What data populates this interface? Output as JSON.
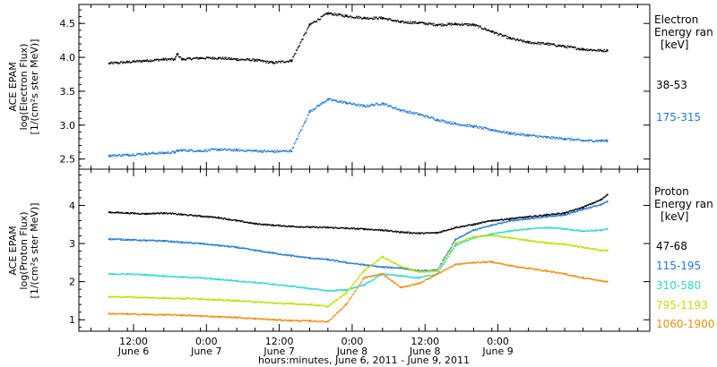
{
  "chart_data": [
    {
      "type": "scatter",
      "ylabel_lines": [
        "ACE EPAM",
        "log(Electron Flux)",
        "[1/(cm²s ster MeV)]"
      ],
      "ylim": [
        2.35,
        4.78
      ],
      "yticks": [
        "2.5",
        "3.0",
        "3.5",
        "4.0",
        "4.5"
      ],
      "ytick_values": [
        2.5,
        3.0,
        3.5,
        4.0,
        4.5
      ],
      "legend_title": [
        "Electron",
        "Energy ran",
        "[keV]"
      ],
      "x": [
        0,
        3,
        6,
        9,
        10.8,
        11.2,
        12,
        15,
        18,
        21,
        24,
        27,
        30,
        33,
        36,
        39,
        42,
        45,
        48,
        51,
        54,
        57,
        60,
        63,
        66,
        69,
        72,
        75,
        78,
        81,
        82
      ],
      "series": [
        {
          "name": "38-53",
          "color": "#000000",
          "values": [
            3.91,
            3.93,
            3.95,
            3.97,
            3.97,
            4.05,
            3.97,
            3.99,
            3.99,
            3.97,
            3.96,
            3.92,
            3.95,
            4.48,
            4.65,
            4.61,
            4.58,
            4.58,
            4.52,
            4.51,
            4.48,
            4.49,
            4.48,
            4.38,
            4.28,
            4.22,
            4.2,
            4.16,
            4.12,
            4.1,
            4.1
          ]
        },
        {
          "name": "175-315",
          "color": "#1f78d8",
          "values": [
            2.55,
            2.56,
            2.58,
            2.59,
            2.6,
            2.62,
            2.63,
            2.62,
            2.64,
            2.63,
            2.62,
            2.61,
            2.62,
            3.2,
            3.38,
            3.33,
            3.28,
            3.32,
            3.22,
            3.16,
            3.08,
            3.02,
            2.98,
            2.93,
            2.88,
            2.85,
            2.82,
            2.8,
            2.77,
            2.77,
            2.77
          ]
        }
      ]
    },
    {
      "type": "scatter",
      "ylabel_lines": [
        "ACE EPAM",
        "log(Proton Flux)",
        "[1/(cm²s ster MeV)]"
      ],
      "ylim": [
        0.7,
        4.95
      ],
      "yticks": [
        "1",
        "2",
        "3",
        "4"
      ],
      "ytick_values": [
        1,
        2,
        3,
        4
      ],
      "legend_title": [
        "Proton",
        "Energy ran",
        "[keV]"
      ],
      "x": [
        0,
        3,
        6,
        9,
        12,
        15,
        18,
        21,
        24,
        27,
        30,
        33,
        36,
        39,
        42,
        45,
        48,
        51,
        54,
        57,
        60,
        63,
        66,
        69,
        72,
        75,
        78,
        81,
        82
      ],
      "series": [
        {
          "name": "47-68",
          "color": "#000000",
          "values": [
            3.82,
            3.8,
            3.78,
            3.8,
            3.76,
            3.72,
            3.68,
            3.6,
            3.52,
            3.48,
            3.45,
            3.43,
            3.42,
            3.4,
            3.38,
            3.35,
            3.3,
            3.27,
            3.28,
            3.42,
            3.5,
            3.6,
            3.65,
            3.7,
            3.75,
            3.8,
            3.95,
            4.15,
            4.28
          ]
        },
        {
          "name": "115-195",
          "color": "#1f78d8",
          "values": [
            3.12,
            3.1,
            3.08,
            3.07,
            3.03,
            3.0,
            2.95,
            2.9,
            2.82,
            2.75,
            2.68,
            2.62,
            2.58,
            2.5,
            2.44,
            2.38,
            2.36,
            2.28,
            2.3,
            3.1,
            3.35,
            3.48,
            3.6,
            3.65,
            3.7,
            3.75,
            3.9,
            4.02,
            4.1
          ]
        },
        {
          "name": "310-580",
          "color": "#2dd8d0",
          "values": [
            2.2,
            2.2,
            2.18,
            2.15,
            2.12,
            2.1,
            2.06,
            2.02,
            1.98,
            1.93,
            1.88,
            1.82,
            1.76,
            1.78,
            1.92,
            2.2,
            2.15,
            2.1,
            2.2,
            2.95,
            3.15,
            3.25,
            3.33,
            3.38,
            3.42,
            3.38,
            3.33,
            3.35,
            3.38
          ]
        },
        {
          "name": "795-1193",
          "color": "#b8e000",
          "values": [
            1.6,
            1.6,
            1.58,
            1.57,
            1.56,
            1.55,
            1.52,
            1.5,
            1.47,
            1.44,
            1.42,
            1.4,
            1.35,
            1.7,
            2.3,
            2.65,
            2.4,
            2.25,
            2.28,
            3.0,
            3.18,
            3.22,
            3.15,
            3.08,
            3.02,
            2.98,
            2.9,
            2.82,
            2.82
          ]
        },
        {
          "name": "1060-1900",
          "color": "#f08c10",
          "values": [
            1.16,
            1.15,
            1.14,
            1.13,
            1.12,
            1.1,
            1.08,
            1.06,
            1.03,
            1.0,
            0.98,
            0.97,
            0.95,
            1.4,
            2.1,
            2.2,
            1.85,
            1.95,
            2.2,
            2.45,
            2.5,
            2.52,
            2.42,
            2.35,
            2.28,
            2.2,
            2.1,
            2.02,
            2.0
          ]
        }
      ]
    }
  ],
  "x_axis": {
    "xlim": [
      -5,
      89
    ],
    "major_ticks": [
      {
        "x": 4,
        "time": "12:00",
        "date": "June 6"
      },
      {
        "x": 16,
        "time": "0:00",
        "date": "June 7"
      },
      {
        "x": 28,
        "time": "12:00",
        "date": "June 7"
      },
      {
        "x": 40,
        "time": "0:00",
        "date": "June 8"
      },
      {
        "x": 52,
        "time": "12:00",
        "date": "June 8"
      },
      {
        "x": 64,
        "time": "0:00",
        "date": "June 9"
      }
    ],
    "label": "hours:minutes, June  6, 2011 - June  9, 2011"
  }
}
